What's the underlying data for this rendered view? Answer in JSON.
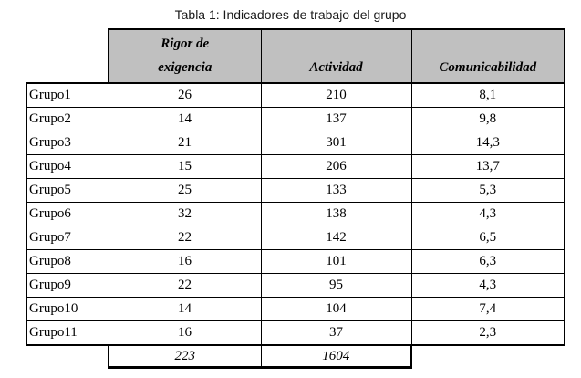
{
  "caption": "Tabla 1: Indicadores de trabajo del grupo",
  "table": {
    "corner_label": "",
    "columns": [
      "Rigor de\nexigencia",
      "Actividad",
      "Comunicabilidad"
    ],
    "rows": [
      {
        "label": "Grupo1",
        "values": [
          "26",
          "210",
          "8,1"
        ]
      },
      {
        "label": "Grupo2",
        "values": [
          "14",
          "137",
          "9,8"
        ]
      },
      {
        "label": "Grupo3",
        "values": [
          "21",
          "301",
          "14,3"
        ]
      },
      {
        "label": "Grupo4",
        "values": [
          "15",
          "206",
          "13,7"
        ]
      },
      {
        "label": "Grupo5",
        "values": [
          "25",
          "133",
          "5,3"
        ]
      },
      {
        "label": "Grupo6",
        "values": [
          "32",
          "138",
          "4,3"
        ]
      },
      {
        "label": "Grupo7",
        "values": [
          "22",
          "142",
          "6,5"
        ]
      },
      {
        "label": "Grupo8",
        "values": [
          "16",
          "101",
          "6,3"
        ]
      },
      {
        "label": "Grupo9",
        "values": [
          "22",
          "95",
          "4,3"
        ]
      },
      {
        "label": "Grupo10",
        "values": [
          "14",
          "104",
          "7,4"
        ]
      },
      {
        "label": "Grupo11",
        "values": [
          "16",
          "37",
          "2,3"
        ]
      }
    ],
    "totals": {
      "rigor_de_exigencia": "223",
      "actividad": "1604",
      "comunicabilidad": ""
    }
  },
  "colors": {
    "header_bg": "#c0c0c0",
    "border": "#000000",
    "background": "#ffffff"
  }
}
